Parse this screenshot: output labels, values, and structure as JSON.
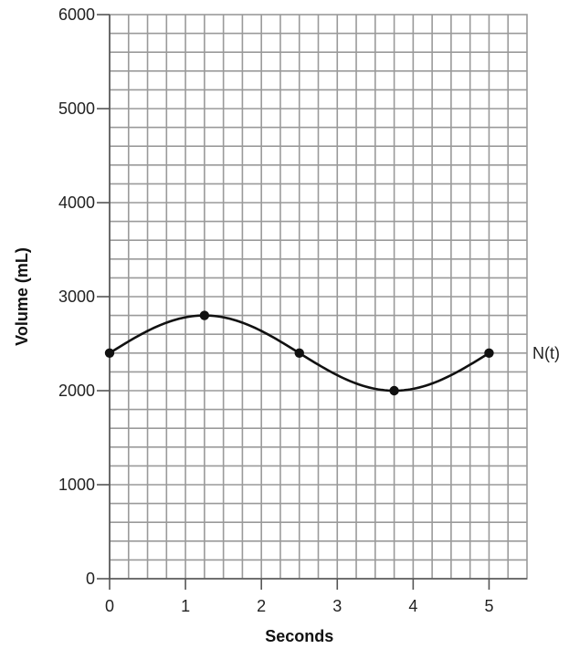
{
  "chart_data": {
    "type": "line",
    "title": "",
    "xlabel": "Seconds",
    "ylabel": "Volume (mL)",
    "xlim": [
      0,
      5.5
    ],
    "ylim": [
      0,
      6000
    ],
    "x_ticks": [
      0,
      1,
      2,
      3,
      4,
      5
    ],
    "y_ticks": [
      0,
      1000,
      2000,
      3000,
      4000,
      5000,
      6000
    ],
    "x_tick_labels": [
      "0",
      "1",
      "2",
      "3",
      "4",
      "5"
    ],
    "y_tick_labels": [
      "0",
      "1000",
      "2000",
      "3000",
      "4000",
      "5000",
      "6000"
    ],
    "grid": true,
    "grid_minor_x": 0.25,
    "grid_minor_y": 200,
    "series": [
      {
        "name": "N(t)",
        "x": [
          0,
          1.25,
          2.5,
          3.75,
          5
        ],
        "y": [
          2400,
          2800,
          2400,
          2000,
          2400
        ],
        "curve": "sinusoidal",
        "markers": true,
        "color": "#111111"
      }
    ],
    "colors": {
      "grid": "#9a9a9a",
      "axis": "#555555",
      "line": "#111111"
    }
  }
}
